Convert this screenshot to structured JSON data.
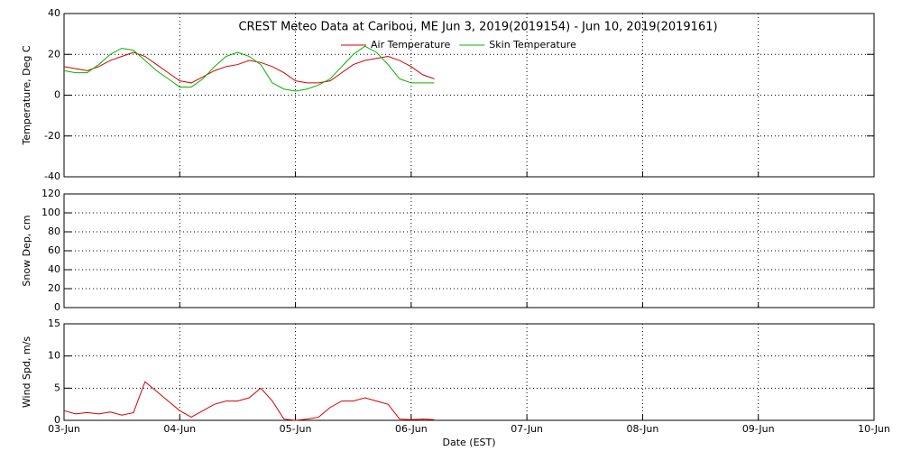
{
  "chart_data": [
    {
      "type": "line",
      "title": "CREST Meteo Data at Caribou, ME   Jun  3, 2019(2019154) - Jun 10, 2019(2019161)",
      "ylabel": "Temperature, Deg C",
      "legend": "upper center",
      "grid": true,
      "xlim": [
        3,
        10
      ],
      "xticks": [
        3,
        4,
        5,
        6,
        7,
        8,
        9,
        10
      ],
      "ylim": [
        -40,
        40
      ],
      "yticks": [
        -40,
        -20,
        0,
        20,
        40
      ],
      "x": [
        3.0,
        3.1,
        3.2,
        3.3,
        3.4,
        3.5,
        3.6,
        3.7,
        3.8,
        3.9,
        4.0,
        4.1,
        4.2,
        4.3,
        4.4,
        4.5,
        4.6,
        4.7,
        4.8,
        4.9,
        5.0,
        5.1,
        5.2,
        5.3,
        5.4,
        5.5,
        5.6,
        5.7,
        5.8,
        5.9,
        6.0,
        6.1,
        6.2
      ],
      "series": [
        {
          "name": "Air Temperature",
          "color": "#d40000",
          "values": [
            14,
            13,
            12,
            14,
            17,
            19,
            21,
            19,
            15,
            11,
            7,
            6,
            9,
            12,
            14,
            15,
            17,
            16,
            14,
            11,
            7,
            6,
            6,
            7,
            11,
            15,
            17,
            18,
            19,
            17,
            14,
            10,
            8
          ]
        },
        {
          "name": "Skin Temperature",
          "color": "#00b400",
          "values": [
            12,
            11,
            11,
            15,
            20,
            23,
            22,
            17,
            12,
            8,
            4,
            4,
            8,
            14,
            19,
            21,
            19,
            15,
            6,
            3,
            2,
            3,
            5,
            8,
            14,
            20,
            24,
            21,
            15,
            8,
            6,
            6,
            6
          ]
        }
      ]
    },
    {
      "type": "line",
      "ylabel": "Snow Dep, cm",
      "grid": true,
      "xlim": [
        3,
        10
      ],
      "xticks": [
        3,
        4,
        5,
        6,
        7,
        8,
        9,
        10
      ],
      "ylim": [
        0,
        120
      ],
      "yticks": [
        0,
        20,
        40,
        60,
        80,
        100,
        120
      ],
      "x": [],
      "series": []
    },
    {
      "type": "line",
      "ylabel": "Wind Spd, m/s",
      "xlabel": "Date (EST)",
      "grid": true,
      "xlim": [
        3,
        10
      ],
      "xticks": [
        {
          "value": 3,
          "label": "03-Jun"
        },
        {
          "value": 4,
          "label": "04-Jun"
        },
        {
          "value": 5,
          "label": "05-Jun"
        },
        {
          "value": 6,
          "label": "06-Jun"
        },
        {
          "value": 7,
          "label": "07-Jun"
        },
        {
          "value": 8,
          "label": "08-Jun"
        },
        {
          "value": 9,
          "label": "09-Jun"
        },
        {
          "value": 10,
          "label": "10-Jun"
        }
      ],
      "ylim": [
        0,
        15
      ],
      "yticks": [
        0,
        5,
        10,
        15
      ],
      "x": [
        3.0,
        3.1,
        3.2,
        3.3,
        3.4,
        3.5,
        3.6,
        3.7,
        3.8,
        3.9,
        4.0,
        4.1,
        4.2,
        4.3,
        4.4,
        4.5,
        4.6,
        4.7,
        4.8,
        4.9,
        5.0,
        5.1,
        5.2,
        5.3,
        5.4,
        5.5,
        5.6,
        5.7,
        5.8,
        5.9,
        6.0,
        6.1,
        6.2
      ],
      "series": [
        {
          "color": "#d40000",
          "values": [
            1.5,
            1,
            1.2,
            1,
            1.3,
            0.8,
            1.2,
            6,
            4.5,
            3,
            1.5,
            0.5,
            1.5,
            2.5,
            3,
            3,
            3.5,
            5,
            3,
            0.2,
            0,
            0.2,
            0.5,
            2,
            3,
            3,
            3.5,
            3,
            2.5,
            0.2,
            0.1,
            0.2,
            0.1
          ]
        }
      ]
    }
  ]
}
